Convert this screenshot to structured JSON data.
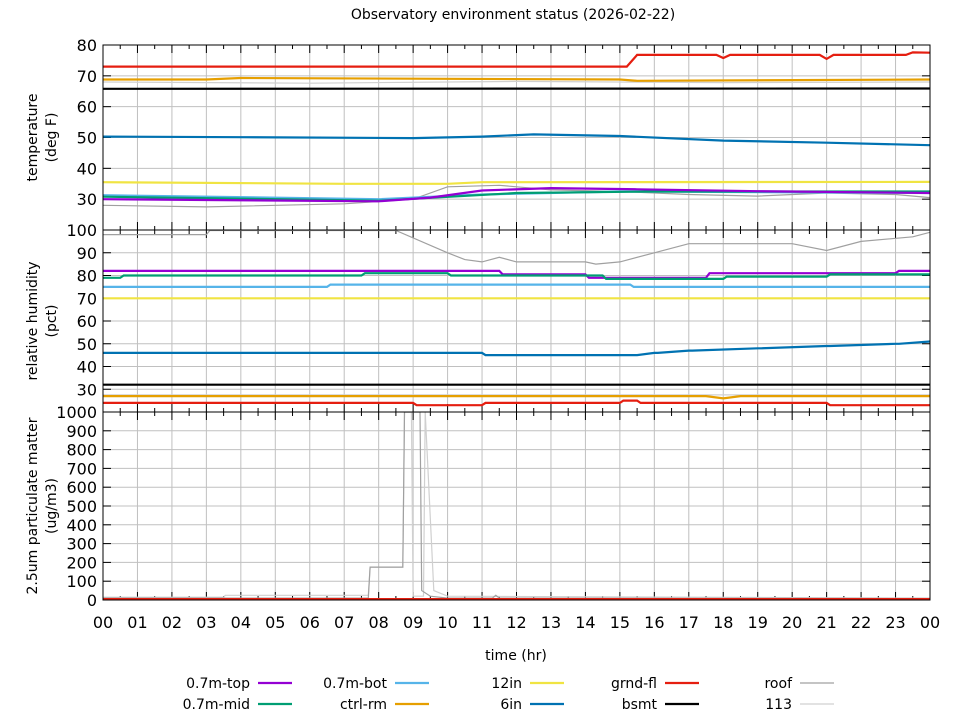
{
  "chart_data": {
    "type": "line",
    "title": "Observatory environment status (2026-02-22)",
    "xlabel": "time (hr)",
    "xlim": [
      0,
      24
    ],
    "x_tick_labels": [
      "00",
      "01",
      "02",
      "03",
      "04",
      "05",
      "06",
      "07",
      "08",
      "09",
      "10",
      "11",
      "12",
      "13",
      "14",
      "15",
      "16",
      "17",
      "18",
      "19",
      "20",
      "21",
      "22",
      "23",
      "00"
    ],
    "grid": true,
    "legend_placement": "bottom",
    "legend": [
      {
        "name": "0.7m-top",
        "color": "#9400d3"
      },
      {
        "name": "0.7m-mid",
        "color": "#009e73"
      },
      {
        "name": "0.7m-bot",
        "color": "#56b4e9"
      },
      {
        "name": "ctrl-rm",
        "color": "#e69f00"
      },
      {
        "name": "12in",
        "color": "#f0e442"
      },
      {
        "name": "6in",
        "color": "#0072b2"
      },
      {
        "name": "grnd-fl",
        "color": "#e51e10"
      },
      {
        "name": "bsmt",
        "color": "#000000"
      },
      {
        "name": "roof",
        "color": "#a0a0a0"
      },
      {
        "name": "113",
        "color": "#d0d0d0"
      }
    ],
    "panels": [
      {
        "ylabel": [
          "temperature",
          "(deg F)"
        ],
        "ylim": [
          20,
          80
        ],
        "yticks": [
          30,
          40,
          50,
          60,
          70,
          80
        ],
        "series": [
          {
            "name": "113",
            "x": [
              0,
              6,
              12,
              18,
              24
            ],
            "y": [
              68,
              67.6,
              68.2,
              67.8,
              68
            ]
          },
          {
            "name": "roof",
            "x": [
              0,
              3,
              7,
              9,
              10,
              11.5,
              13,
              15,
              17,
              19,
              21,
              23,
              24
            ],
            "y": [
              28,
              27.5,
              28.5,
              30,
              34,
              34.5,
              33,
              32.5,
              31.5,
              31,
              32,
              31.5,
              30.5
            ]
          },
          {
            "name": "ctrl-rm",
            "x": [
              0,
              3,
              4,
              15,
              15.5,
              24
            ],
            "y": [
              68.8,
              68.8,
              69.3,
              68.8,
              68.4,
              68.8
            ]
          },
          {
            "name": "bsmt",
            "x": [
              0,
              24
            ],
            "y": [
              65.8,
              65.9
            ]
          },
          {
            "name": "6in",
            "x": [
              0,
              4,
              9,
              11,
              12.5,
              15,
              18,
              21,
              24
            ],
            "y": [
              50.3,
              50.1,
              49.8,
              50.3,
              51,
              50.5,
              49,
              48.3,
              47.5
            ]
          },
          {
            "name": "12in",
            "x": [
              0,
              7,
              10,
              11,
              24
            ],
            "y": [
              35.5,
              35,
              35,
              35.5,
              35.6
            ]
          },
          {
            "name": "0.7m-bot",
            "x": [
              0,
              8,
              11,
              15,
              24
            ],
            "y": [
              31.3,
              30,
              31.5,
              32.5,
              32
            ]
          },
          {
            "name": "0.7m-mid",
            "x": [
              0,
              8,
              12,
              16,
              24
            ],
            "y": [
              30.8,
              29.5,
              32,
              32.5,
              32.5
            ]
          },
          {
            "name": "0.7m-top",
            "x": [
              0,
              8,
              9.5,
              11,
              13,
              15.5,
              19,
              24
            ],
            "y": [
              30,
              29.3,
              30.5,
              32.8,
              33.6,
              33.2,
              32.6,
              32
            ]
          },
          {
            "name": "grnd-fl",
            "x": [
              0,
              15.2,
              15.5,
              17.8,
              18,
              18.2,
              20.8,
              21,
              21.2,
              23.3,
              23.5,
              24
            ],
            "y": [
              73,
              73,
              76.8,
              76.8,
              75.8,
              76.8,
              76.8,
              75.5,
              76.8,
              76.8,
              77.6,
              77.5
            ]
          }
        ]
      },
      {
        "ylabel": [
          "relative humidity",
          "(pct)"
        ],
        "ylim": [
          20,
          100
        ],
        "yticks": [
          30,
          40,
          50,
          60,
          70,
          80,
          90,
          100
        ],
        "series": [
          {
            "name": "roof",
            "x": [
              0,
              3,
              3.1,
              8.5,
              10,
              10.5,
              11,
              11.5,
              12,
              14,
              14.3,
              15,
              16,
              17,
              20,
              21,
              22,
              23.5,
              24
            ],
            "y": [
              98,
              98,
              99.8,
              99.8,
              90,
              87,
              86,
              88,
              86,
              86,
              85,
              86,
              90,
              94,
              94,
              91,
              95,
              97,
              99
            ]
          },
          {
            "name": "113",
            "x": [
              0,
              24
            ],
            "y": [
              27.5,
              27.5
            ]
          },
          {
            "name": "ctrl-rm",
            "x": [
              0,
              17.5,
              18,
              18.5,
              24
            ],
            "y": [
              27,
              27,
              26,
              27,
              27
            ]
          },
          {
            "name": "0.7m-top",
            "x": [
              0,
              11.5,
              11.6,
              14,
              14.1,
              17.5,
              17.6,
              23,
              23.1,
              24
            ],
            "y": [
              82,
              82,
              80.5,
              80.5,
              79,
              79,
              81,
              81,
              82,
              82
            ]
          },
          {
            "name": "0.7m-mid",
            "x": [
              0,
              0.5,
              0.6,
              7.5,
              7.6,
              10,
              10.1,
              14.5,
              14.6,
              18,
              18.1,
              21,
              21.1,
              24
            ],
            "y": [
              79,
              79,
              80,
              80,
              81,
              81,
              80,
              80,
              78.5,
              78.5,
              79.5,
              79.5,
              80.5,
              80.5
            ]
          },
          {
            "name": "0.7m-bot",
            "x": [
              0,
              6.5,
              6.6,
              15.3,
              15.4,
              24
            ],
            "y": [
              75,
              75,
              76,
              76,
              75,
              75
            ]
          },
          {
            "name": "12in",
            "x": [
              0,
              24
            ],
            "y": [
              70,
              70
            ]
          },
          {
            "name": "6in",
            "x": [
              0,
              11,
              11.1,
              15.5,
              16,
              16.1,
              17,
              17.1,
              19,
              19.1,
              21,
              21.1,
              23,
              23.1,
              24
            ],
            "y": [
              46,
              46,
              45,
              45,
              46,
              46,
              47,
              47,
              48,
              48,
              49,
              49,
              50,
              50,
              51
            ]
          },
          {
            "name": "bsmt",
            "x": [
              0,
              24
            ],
            "y": [
              32,
              32
            ]
          },
          {
            "name": "grnd-fl",
            "x": [
              0,
              9,
              9.1,
              11,
              11.1,
              15,
              15.1,
              15.5,
              15.6,
              21,
              21.1,
              24
            ],
            "y": [
              24,
              24,
              23,
              23,
              24,
              24,
              25,
              25,
              24,
              24,
              23,
              23
            ]
          }
        ]
      },
      {
        "ylabel": [
          "2.5um particulate matter",
          "(ug/m3)"
        ],
        "ylim": [
          0,
          1000
        ],
        "yticks": [
          0,
          100,
          200,
          300,
          400,
          500,
          600,
          700,
          800,
          900,
          1000
        ],
        "series": [
          {
            "name": "113",
            "x": [
              0,
              3.5,
              3.55,
              7.7,
              7.75,
              8.7,
              8.75,
              8.95,
              9.0,
              9.3,
              9.35,
              9.6,
              10,
              24
            ],
            "y": [
              15,
              15,
              25,
              25,
              175,
              175,
              1000,
              1000,
              20,
              20,
              1000,
              50,
              20,
              10
            ]
          },
          {
            "name": "roof",
            "x": [
              0,
              7.7,
              7.75,
              8.7,
              8.75,
              9.2,
              9.25,
              9.5,
              10,
              11.3,
              11.4,
              11.5,
              24
            ],
            "y": [
              10,
              10,
              175,
              175,
              1000,
              1000,
              50,
              20,
              10,
              10,
              25,
              10,
              8
            ]
          },
          {
            "name": "grnd-fl",
            "x": [
              0,
              24
            ],
            "y": [
              5,
              5
            ]
          }
        ]
      }
    ]
  }
}
